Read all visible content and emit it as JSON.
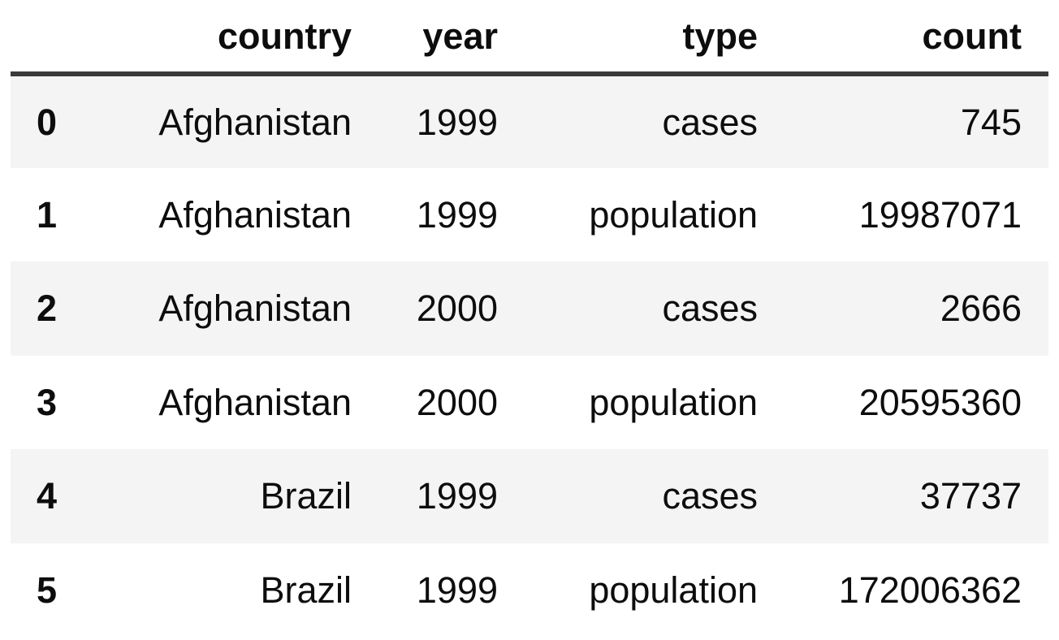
{
  "table": {
    "corner_label": "",
    "columns": [
      "country",
      "year",
      "type",
      "count"
    ],
    "rows": [
      {
        "index": "0",
        "country": "Afghanistan",
        "year": "1999",
        "type": "cases",
        "count": "745"
      },
      {
        "index": "1",
        "country": "Afghanistan",
        "year": "1999",
        "type": "population",
        "count": "19987071"
      },
      {
        "index": "2",
        "country": "Afghanistan",
        "year": "2000",
        "type": "cases",
        "count": "2666"
      },
      {
        "index": "3",
        "country": "Afghanistan",
        "year": "2000",
        "type": "population",
        "count": "20595360"
      },
      {
        "index": "4",
        "country": "Brazil",
        "year": "1999",
        "type": "cases",
        "count": "37737"
      },
      {
        "index": "5",
        "country": "Brazil",
        "year": "1999",
        "type": "population",
        "count": "172006362"
      }
    ]
  },
  "colors": {
    "background": "#ffffff",
    "text": "#0d0d0d",
    "stripe": "#f4f4f4",
    "header_rule": "#3a3a3a"
  }
}
